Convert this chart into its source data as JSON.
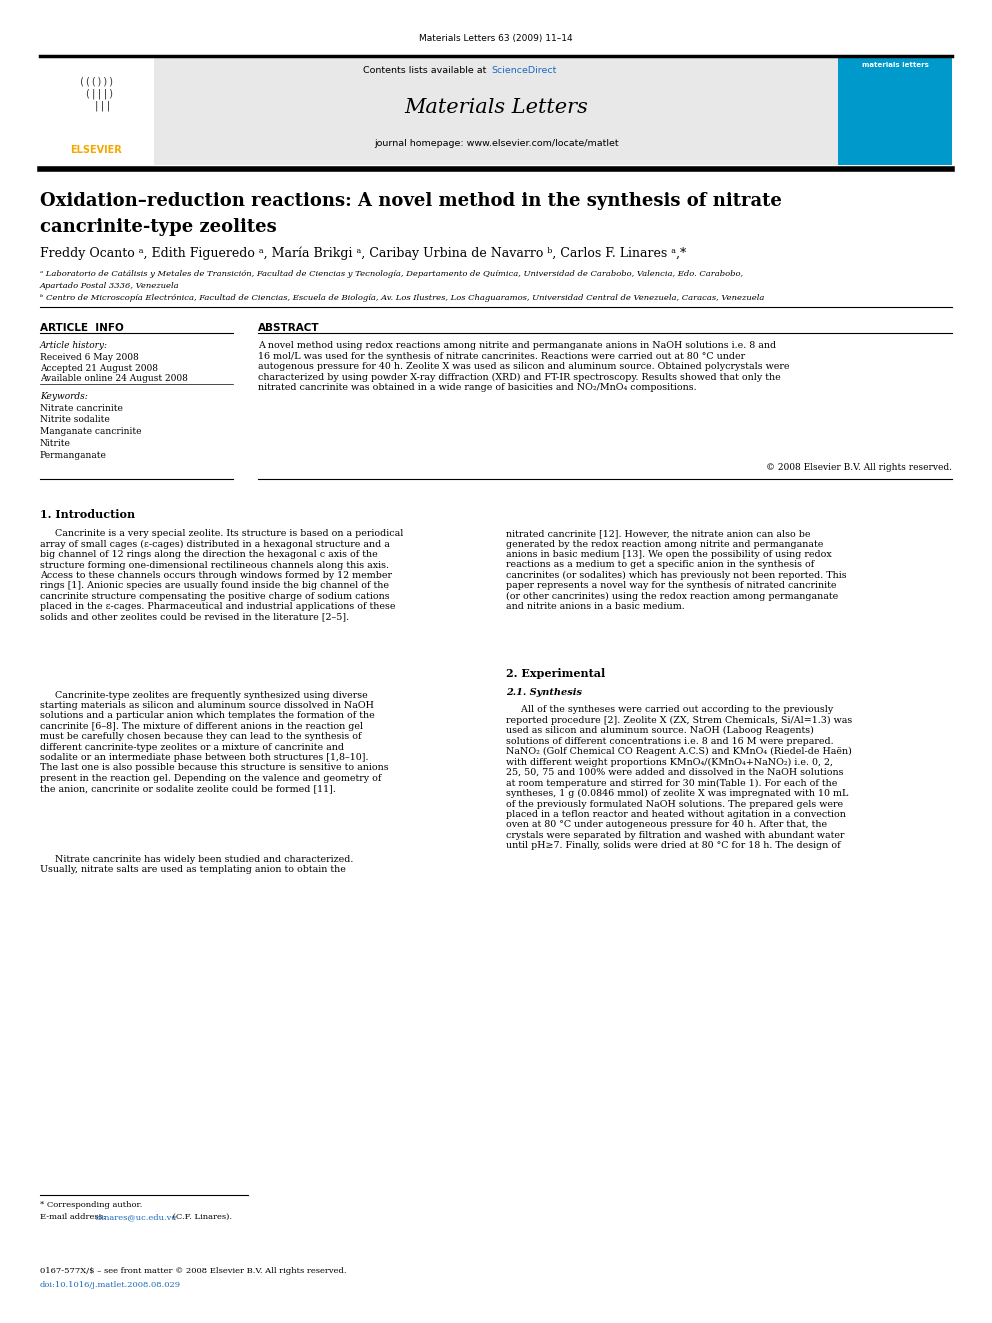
{
  "page_width": 9.92,
  "page_height": 13.23,
  "background_color": "#ffffff",
  "journal_ref": "Materials Letters 63 (2009) 11–14",
  "header_bg": "#e8e8e8",
  "header_sciencedirect_color": "#1a6abf",
  "journal_name": "Materials Letters",
  "journal_homepage": "journal homepage: www.elsevier.com/locate/matlet",
  "elsevier_color": "#f5a800",
  "title_line1": "Oxidation–reduction reactions: A novel method in the synthesis of nitrate",
  "title_line2": "cancrinite-type zeolites",
  "authors": "Freddy Ocanto ᵃ, Edith Figueredo ᵃ, María Brikgi ᵃ, Caribay Urbina de Navarro ᵇ, Carlos F. Linares ᵃ,*",
  "affil_a_line1": "ᵃ Laboratorio de Catálisis y Metales de Transición, Facultad de Ciencias y Tecnología, Departamento de Química, Universidad de Carabobo, Valencia, Edo. Carabobo,",
  "affil_a_line2": "Apartado Postal 3336, Venezuela",
  "affil_b": "ᵇ Centro de Microscopía Electrónica, Facultad de Ciencias, Escuela de Biología, Av. Los Ilustres, Los Chaguaramos, Universidad Central de Venezuela, Caracas, Venezuela",
  "article_info_header": "ARTICLE  INFO",
  "abstract_header": "ABSTRACT",
  "article_history_label": "Article history:",
  "received": "Received 6 May 2008",
  "accepted": "Accepted 21 August 2008",
  "available": "Available online 24 August 2008",
  "keywords_label": "Keywords:",
  "keywords": [
    "Nitrate cancrinite",
    "Nitrite sodalite",
    "Manganate cancrinite",
    "Nitrite",
    "Permanganate"
  ],
  "abstract_text": "A novel method using redox reactions among nitrite and permanganate anions in NaOH solutions i.e. 8 and\n16 mol/L was used for the synthesis of nitrate cancrinites. Reactions were carried out at 80 °C under\nautogenous pressure for 40 h. Zeolite X was used as silicon and aluminum source. Obtained polycrystals were\ncharacterized by using powder X-ray diffraction (XRD) and FT-IR spectroscopy. Results showed that only the\nnitrated cancrinite was obtained in a wide range of basicities and NO₂/MnO₄ compositions.",
  "copyright": "© 2008 Elsevier B.V. All rights reserved.",
  "intro_header": "1. Introduction",
  "intro_para1": "     Cancrinite is a very special zeolite. Its structure is based on a periodical\narray of small cages (ε-cages) distributed in a hexagonal structure and a\nbig channel of 12 rings along the direction the hexagonal c axis of the\nstructure forming one-dimensional rectilineous channels along this axis.\nAccess to these channels occurs through windows formed by 12 member\nrings [1]. Anionic species are usually found inside the big channel of the\ncancrinite structure compensating the positive charge of sodium cations\nplaced in the ε-cages. Pharmaceutical and industrial applications of these\nsolids and other zeolites could be revised in the literature [2–5].",
  "intro_para2": "     Cancrinite-type zeolites are frequently synthesized using diverse\nstarting materials as silicon and aluminum source dissolved in NaOH\nsolutions and a particular anion which templates the formation of the\ncancrinite [6–8]. The mixture of different anions in the reaction gel\nmust be carefully chosen because they can lead to the synthesis of\ndifferent cancrinite-type zeolites or a mixture of cancrinite and\nsodalite or an intermediate phase between both structures [1,8–10].\nThe last one is also possible because this structure is sensitive to anions\npresent in the reaction gel. Depending on the valence and geometry of\nthe anion, cancrinite or sodalite zeolite could be formed [11].",
  "intro_para3": "     Nitrate cancrinite has widely been studied and characterized.\nUsually, nitrate salts are used as templating anion to obtain the",
  "right_para1": "nitrated cancrinite [12]. However, the nitrate anion can also be\ngenerated by the redox reaction among nitrite and permanganate\nanions in basic medium [13]. We open the possibility of using redox\nreactions as a medium to get a specific anion in the synthesis of\ncancrinites (or sodalites) which has previously not been reported. This\npaper represents a novel way for the synthesis of nitrated cancrinite\n(or other cancrinites) using the redox reaction among permanganate\nand nitrite anions in a basic medium.",
  "experimental_header": "2. Experimental",
  "synthesis_subheader": "2.1. Synthesis",
  "synthesis_text": "     All of the syntheses were carried out according to the previously\nreported procedure [2]. Zeolite X (ZX, Strem Chemicals, Si/Al=1.3) was\nused as silicon and aluminum source. NaOH (Laboog Reagents)\nsolutions of different concentrations i.e. 8 and 16 M were prepared.\nNaNO₂ (Golf Chemical CO Reagent A.C.S) and KMnO₄ (Riedel-de Haën)\nwith different weight proportions KMnO₄/(KMnO₄+NaNO₂) i.e. 0, 2,\n25, 50, 75 and 100% were added and dissolved in the NaOH solutions\nat room temperature and stirred for 30 min(Table 1). For each of the\nsyntheses, 1 g (0.0846 mmol) of zeolite X was impregnated with 10 mL\nof the previously formulated NaOH solutions. The prepared gels were\nplaced in a teflon reactor and heated without agitation in a convection\noven at 80 °C under autogeneous pressure for 40 h. After that, the\ncrystals were separated by filtration and washed with abundant water\nuntil pH≥7. Finally, solids were dried at 80 °C for 18 h. The design of",
  "footnote_star": "* Corresponding author.",
  "footnote_email_plain": "E-mail address: ",
  "footnote_email_link": "clinares@uc.edu.ve",
  "footnote_email_suffix": " (C.F. Linares).",
  "footer_line1": "0167-577X/$ – see front matter © 2008 Elsevier B.V. All rights reserved.",
  "footer_line2": "doi:10.1016/j.matlet.2008.08.029"
}
